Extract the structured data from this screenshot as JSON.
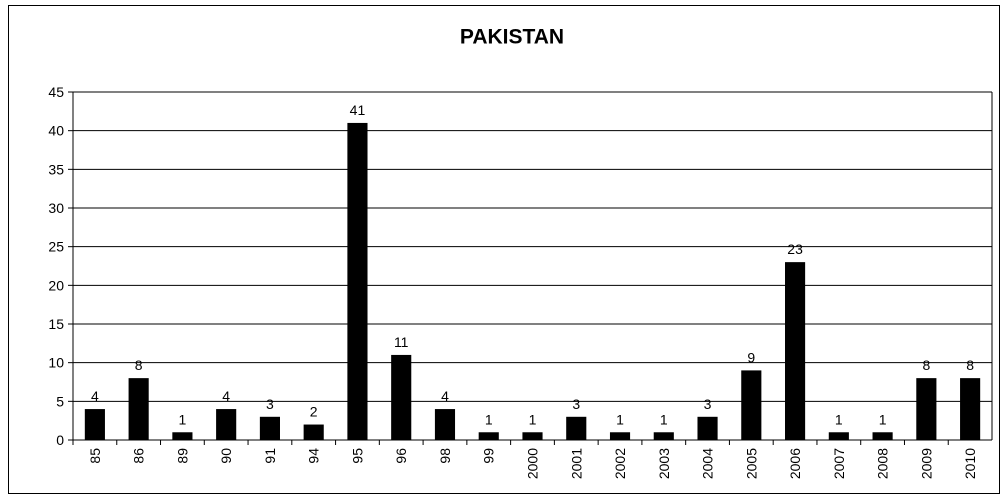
{
  "chart_data": {
    "type": "bar",
    "title": "PAKISTAN",
    "categories": [
      "85",
      "86",
      "89",
      "90",
      "91",
      "94",
      "95",
      "96",
      "98",
      "99",
      "2000",
      "2001",
      "2002",
      "2003",
      "2004",
      "2005",
      "2006",
      "2007",
      "2008",
      "2009",
      "2010"
    ],
    "values": [
      4,
      8,
      1,
      4,
      3,
      2,
      41,
      11,
      4,
      1,
      1,
      3,
      1,
      1,
      3,
      9,
      23,
      1,
      1,
      8,
      8
    ],
    "color": "#000000",
    "ylim": [
      0,
      45
    ],
    "yticks": [
      0,
      5,
      10,
      15,
      20,
      25,
      30,
      35,
      40,
      45
    ],
    "grid": true
  }
}
